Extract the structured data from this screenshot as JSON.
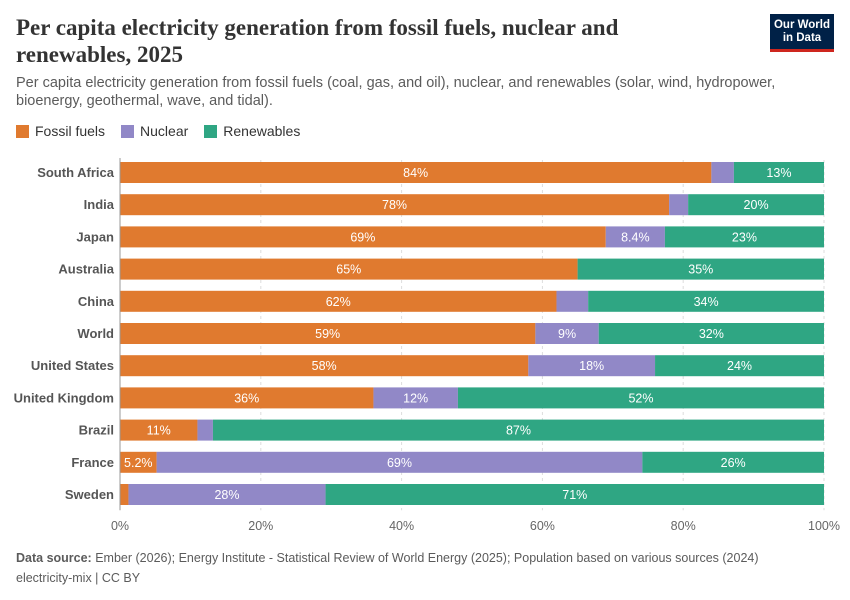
{
  "header": {
    "title": "Per capita electricity generation from fossil fuels, nuclear and renewables, 2025",
    "subtitle": "Per capita electricity generation from fossil fuels (coal, gas, and oil), nuclear, and renewables (solar, wind, hydropower, bioenergy, geothermal, wave, and tidal).",
    "logo_line1": "Our World",
    "logo_line2": "in Data"
  },
  "footer": {
    "source_label": "Data source:",
    "source_text": "Ember (2026); Energy Institute - Statistical Review of World Energy (2025); Population based on various sources (2024)",
    "credit": "electricity-mix | CC BY"
  },
  "colors": {
    "fossil": "#e07a2f",
    "nuclear": "#9188c7",
    "renewables": "#2fa683"
  },
  "chart_data": {
    "type": "bar",
    "orientation": "horizontal",
    "stacked": true,
    "xlim": [
      0,
      100
    ],
    "xticks": [
      "0%",
      "20%",
      "40%",
      "60%",
      "80%",
      "100%"
    ],
    "grid": true,
    "legend": "top-left",
    "categories": [
      "South Africa",
      "India",
      "Japan",
      "Australia",
      "China",
      "World",
      "United States",
      "United Kingdom",
      "Brazil",
      "France",
      "Sweden"
    ],
    "series": [
      {
        "name": "Fossil fuels",
        "values": [
          84,
          78,
          69,
          65,
          62,
          59,
          58,
          36,
          11,
          5.2,
          1.2
        ],
        "labels": [
          "84%",
          "78%",
          "69%",
          "65%",
          "62%",
          "59%",
          "58%",
          "36%",
          "11%",
          "5.2%",
          ""
        ]
      },
      {
        "name": "Nuclear",
        "values": [
          3.2,
          2.7,
          8.4,
          0,
          4.5,
          9,
          18,
          12,
          2.2,
          69,
          28
        ],
        "labels": [
          "",
          "",
          "8.4%",
          "",
          "",
          "9%",
          "18%",
          "12%",
          "",
          "69%",
          "28%"
        ]
      },
      {
        "name": "Renewables",
        "values": [
          13,
          20,
          23,
          35,
          34,
          32,
          24,
          52,
          87,
          26,
          71
        ],
        "labels": [
          "13%",
          "20%",
          "23%",
          "35%",
          "34%",
          "32%",
          "24%",
          "52%",
          "87%",
          "26%",
          "71%"
        ]
      }
    ]
  }
}
